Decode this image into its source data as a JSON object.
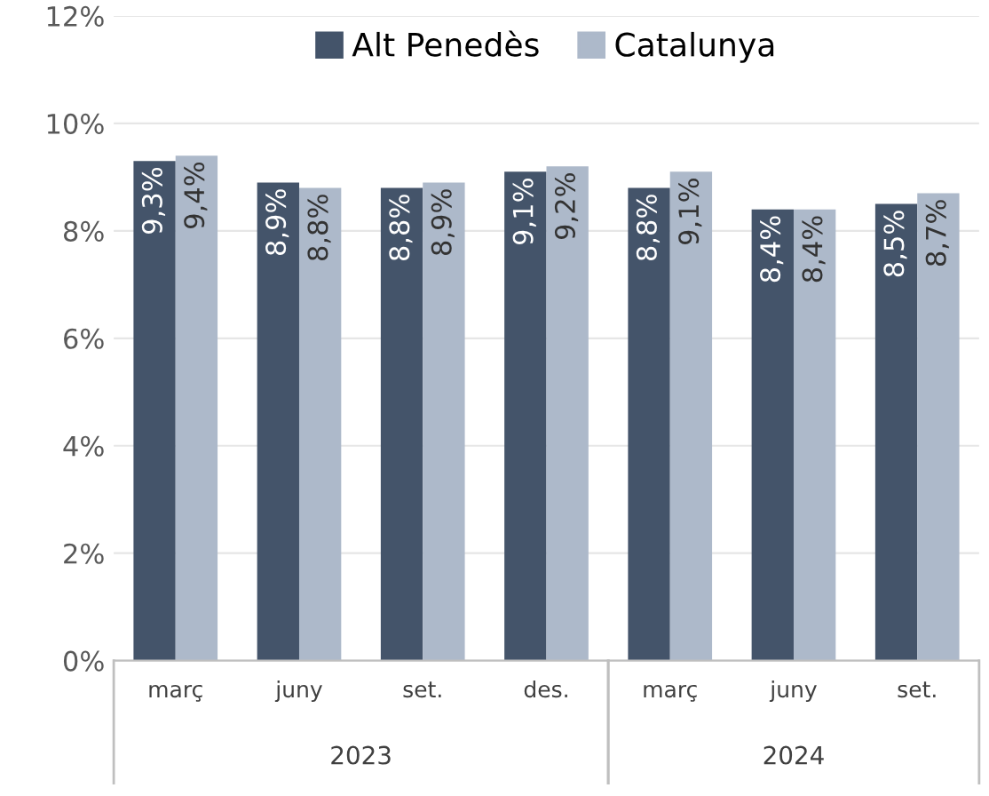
{
  "chart_data": {
    "type": "bar",
    "categories": [
      "març",
      "juny",
      "set.",
      "des.",
      "març",
      "juny",
      "set."
    ],
    "series": [
      {
        "name": "Alt Penedès",
        "color": "#44546a",
        "values": [
          9.3,
          8.9,
          8.8,
          9.1,
          8.8,
          8.4,
          8.5
        ],
        "value_labels": [
          "9,3%",
          "8,9%",
          "8,8%",
          "9,1%",
          "8,8%",
          "8,4%",
          "8,5%"
        ]
      },
      {
        "name": "Catalunya",
        "color": "#adb9ca",
        "values": [
          9.4,
          8.8,
          8.9,
          9.2,
          9.1,
          8.4,
          8.7
        ],
        "value_labels": [
          "9,4%",
          "8,8%",
          "8,9%",
          "9,2%",
          "9,1%",
          "8,4%",
          "8,7%"
        ]
      }
    ],
    "ylim": [
      0,
      12
    ],
    "yticks": [
      {
        "value": 0,
        "label": "0%"
      },
      {
        "value": 2,
        "label": "2%"
      },
      {
        "value": 4,
        "label": "4%"
      },
      {
        "value": 6,
        "label": "6%"
      },
      {
        "value": 8,
        "label": "8%"
      },
      {
        "value": 10,
        "label": "10%"
      },
      {
        "value": 12,
        "label": "12%"
      }
    ],
    "grid": "y",
    "legend": "top",
    "annotations": [
      "2023",
      "2024"
    ]
  }
}
